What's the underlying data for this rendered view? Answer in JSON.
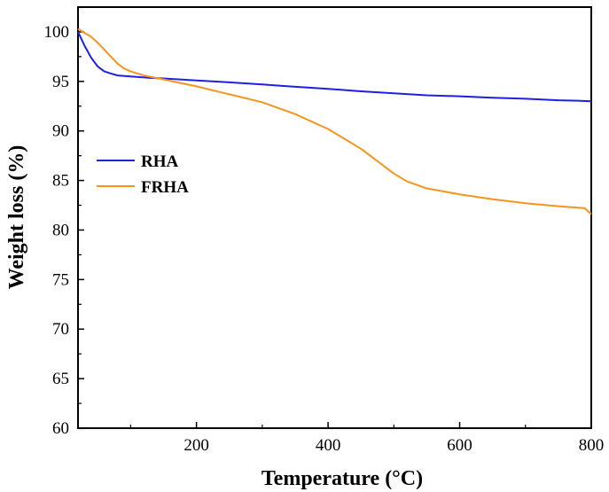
{
  "chart_data": {
    "type": "line",
    "xlabel": "Temperature (°C)",
    "ylabel": "Weight loss (%)",
    "xlim": [
      20,
      800
    ],
    "ylim": [
      60,
      102.5
    ],
    "xticks": [
      200,
      400,
      600,
      800
    ],
    "yticks": [
      60,
      65,
      70,
      75,
      80,
      85,
      90,
      95,
      100
    ],
    "grid": false,
    "legend_position": "center-left",
    "series": [
      {
        "name": "RHA",
        "color": "#1f1fe6",
        "x": [
          20,
          30,
          40,
          50,
          60,
          70,
          80,
          100,
          130,
          150,
          200,
          250,
          300,
          340,
          400,
          450,
          500,
          550,
          600,
          650,
          700,
          750,
          780,
          800
        ],
        "y": [
          100.0,
          98.6,
          97.4,
          96.5,
          96.0,
          95.8,
          95.6,
          95.5,
          95.35,
          95.3,
          95.1,
          94.9,
          94.7,
          94.5,
          94.25,
          94.0,
          93.8,
          93.6,
          93.5,
          93.35,
          93.25,
          93.1,
          93.05,
          93.0
        ]
      },
      {
        "name": "FRHA",
        "color": "#f7941d",
        "x": [
          20,
          30,
          40,
          50,
          60,
          70,
          80,
          90,
          100,
          120,
          150,
          200,
          250,
          300,
          350,
          400,
          450,
          480,
          500,
          520,
          550,
          600,
          650,
          700,
          750,
          790,
          800
        ],
        "y": [
          100.3,
          99.9,
          99.5,
          98.9,
          98.2,
          97.5,
          96.8,
          96.3,
          96.0,
          95.6,
          95.2,
          94.5,
          93.7,
          92.9,
          91.7,
          90.2,
          88.2,
          86.7,
          85.7,
          84.9,
          84.2,
          83.6,
          83.1,
          82.7,
          82.4,
          82.2,
          81.6
        ]
      }
    ]
  }
}
